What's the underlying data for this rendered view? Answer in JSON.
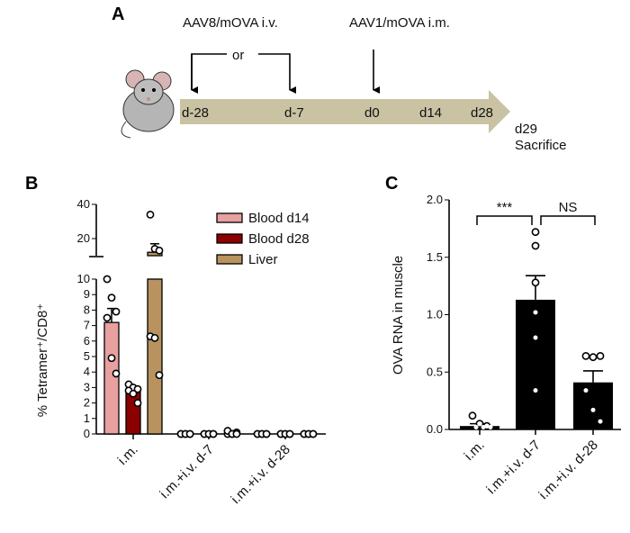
{
  "panel_a": {
    "label": "A",
    "top_left_label": "AAV8/mOVA i.v.",
    "top_right_label": "AAV1/mOVA i.m.",
    "or_label": "or",
    "timeline": [
      "d-28",
      "d-7",
      "d0",
      "d14",
      "d28"
    ],
    "end_day": "d29",
    "end_label": "Sacrifice",
    "band_color": "#c9c2a3"
  },
  "chart_data": [
    {
      "type": "bar",
      "panel_label": "B",
      "ylabel": "% Tetramer⁺/CD8⁺",
      "ylim_lower": [
        0,
        10
      ],
      "ylim_upper": [
        10,
        40
      ],
      "yticks_lower": [
        "0",
        "1",
        "2",
        "3",
        "4",
        "5",
        "6",
        "7",
        "8",
        "9",
        "10"
      ],
      "yticks_upper": [
        "20",
        "40"
      ],
      "categories": [
        "i.m.",
        "i.m.+i.v. d-7",
        "i.m.+i.v. d-28"
      ],
      "series": [
        {
          "name": "Blood d14",
          "color": "#e8a0a0",
          "values": [
            7.2,
            0,
            0
          ],
          "sem": [
            0.9,
            0,
            0
          ],
          "points": [
            [
              10,
              8.8,
              7.9,
              7.5,
              4.9,
              3.9
            ],
            [
              0,
              0,
              0,
              0,
              0,
              0
            ],
            [
              0,
              0,
              0,
              0,
              0,
              0
            ]
          ]
        },
        {
          "name": "Blood d28",
          "color": "#8b0000",
          "values": [
            2.8,
            0,
            0
          ],
          "sem": [
            0.2,
            0,
            0
          ],
          "points": [
            [
              3.2,
              3.0,
              2.9,
              2.8,
              2.6,
              2.0
            ],
            [
              0,
              0,
              0,
              0,
              0,
              0
            ],
            [
              0,
              0,
              0,
              0,
              0,
              0
            ]
          ]
        },
        {
          "name": "Liver",
          "color": "#b8925f",
          "values": [
            12,
            0,
            0
          ],
          "sem": [
            5,
            0,
            0
          ],
          "points": [
            [
              34,
              14,
              13,
              6.3,
              6.2,
              3.8
            ],
            [
              0,
              0,
              0.1,
              0.2,
              0,
              0
            ],
            [
              0,
              0,
              0,
              0,
              0,
              0
            ]
          ]
        }
      ],
      "legend_position": "top-right"
    },
    {
      "type": "bar",
      "panel_label": "C",
      "ylabel": "OVA RNA in muscle",
      "ylim": [
        0,
        2.0
      ],
      "yticks": [
        "0.0",
        "0.5",
        "1.0",
        "1.5",
        "2.0"
      ],
      "categories": [
        "i.m.",
        "i.m.+i.v. d-7",
        "i.m.+i.v. d-28"
      ],
      "values": [
        0.03,
        1.13,
        0.41
      ],
      "sem": [
        0.02,
        0.21,
        0.1
      ],
      "points": [
        [
          0.12,
          0.05,
          0.03,
          0.02,
          0.02,
          0.02
        ],
        [
          1.72,
          1.6,
          1.28,
          1.02,
          0.8,
          0.34
        ],
        [
          0.64,
          0.63,
          0.64,
          0.34,
          0.17,
          0.07
        ]
      ],
      "bar_color": "#000000",
      "annotations": [
        {
          "text": "***",
          "between": [
            0,
            1
          ]
        },
        {
          "text": "NS",
          "between": [
            1,
            2
          ]
        }
      ]
    }
  ]
}
